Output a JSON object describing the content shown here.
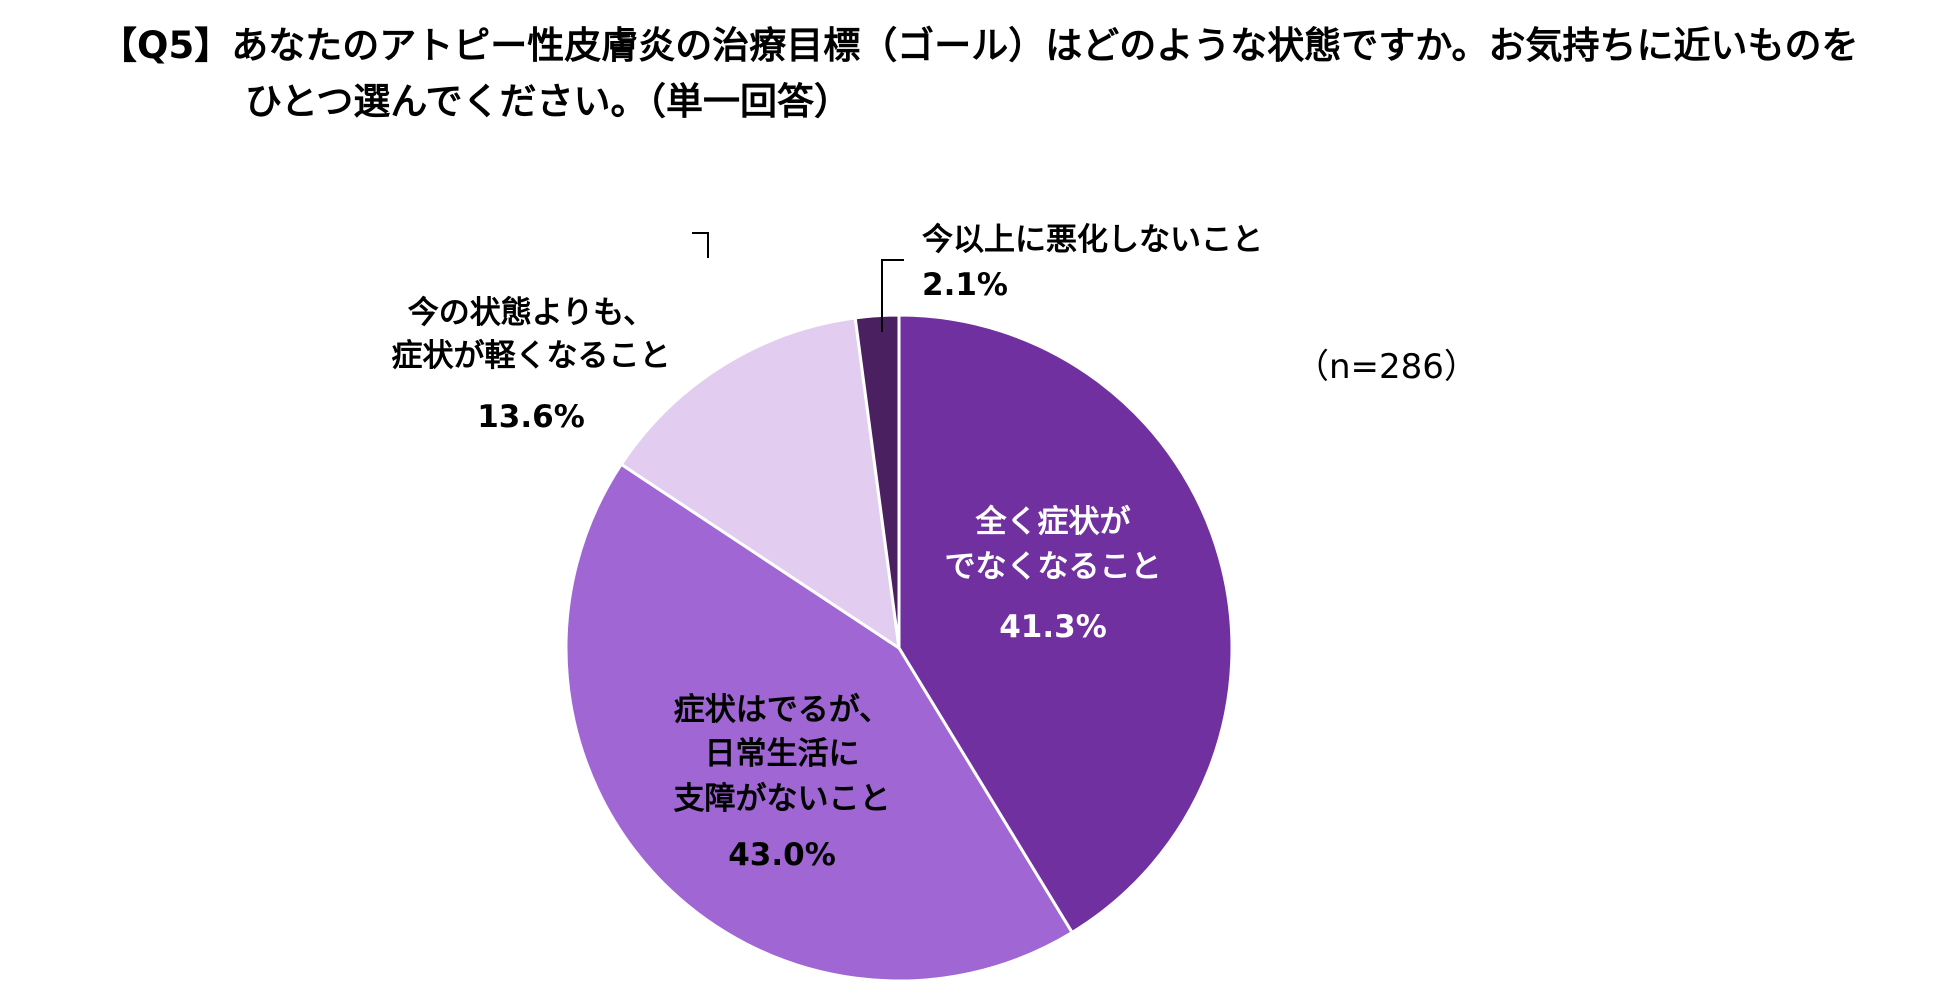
{
  "title": {
    "line1": "【Q5】あなたのアトピー性皮膚炎の治療目標（ゴール）はどのような状態ですか。お気持ちに近いものを",
    "line2": "ひとつ選んでください。（単一回答）"
  },
  "sample_size": "（n=286）",
  "chart_data": {
    "type": "pie",
    "slices": [
      {
        "label_lines": [
          "全く症状が",
          "でなくなること"
        ],
        "value_text": "41.3%",
        "value": 41.3,
        "color": "#7030a0"
      },
      {
        "label_lines": [
          "症状はでるが、",
          "日常生活に",
          "支障がないこと"
        ],
        "value_text": "43.0%",
        "value": 43.0,
        "color": "#a066d3"
      },
      {
        "label_lines": [
          "今の状態よりも、",
          "症状が軽くなること"
        ],
        "value_text": "13.6%",
        "value": 13.6,
        "color": "#e2cdf0"
      },
      {
        "label_lines": [
          "今以上に悪化しないこと"
        ],
        "value_text": "2.1%",
        "value": 2.1,
        "color": "#4b2060"
      }
    ]
  }
}
